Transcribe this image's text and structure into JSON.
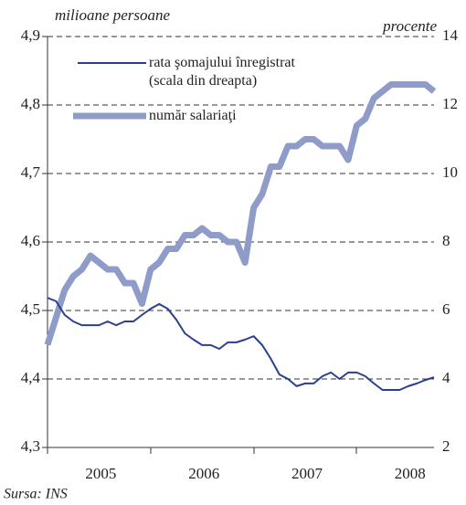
{
  "chart_data": {
    "type": "line",
    "left_axis_label": "milioane persoane",
    "right_axis_label": "procente",
    "source": "Sursa: INS",
    "categories": [
      null,
      null,
      null,
      null,
      null,
      null,
      "2005",
      null,
      null,
      null,
      null,
      null,
      null,
      null,
      null,
      null,
      null,
      null,
      "2006",
      null,
      null,
      null,
      null,
      null,
      null,
      null,
      null,
      null,
      null,
      null,
      "2007",
      null,
      null,
      null,
      null,
      null,
      null,
      null,
      null,
      null,
      null,
      null,
      "2008",
      null,
      null,
      null
    ],
    "series": [
      {
        "name": "rata şomajului înregistrat (scala din dreapta)",
        "color": "#2b3f8f",
        "axis": "y2",
        "values": [
          6.37,
          6.27,
          5.87,
          5.68,
          5.57,
          5.57,
          5.57,
          5.68,
          5.57,
          5.68,
          5.68,
          5.87,
          6.05,
          6.19,
          6.05,
          5.73,
          5.33,
          5.15,
          4.99,
          4.99,
          4.88,
          5.07,
          5.07,
          5.15,
          5.25,
          4.99,
          4.59,
          4.13,
          4.0,
          3.79,
          3.87,
          3.87,
          4.08,
          4.19,
          4.0,
          4.19,
          4.19,
          4.08,
          3.87,
          3.68,
          3.68,
          3.68,
          3.79,
          3.87,
          3.97,
          4.05
        ]
      },
      {
        "name": "număr salariaţi",
        "color": "#8f9bc8",
        "values": [
          4.45,
          4.49,
          4.53,
          4.55,
          4.56,
          4.58,
          4.57,
          4.56,
          4.56,
          4.54,
          4.54,
          4.51,
          4.56,
          4.57,
          4.59,
          4.59,
          4.61,
          4.61,
          4.62,
          4.61,
          4.61,
          4.6,
          4.6,
          4.57,
          4.65,
          4.67,
          4.71,
          4.71,
          4.74,
          4.74,
          4.75,
          4.75,
          4.74,
          4.74,
          4.74,
          4.72,
          4.77,
          4.78,
          4.81,
          4.82,
          4.83,
          4.83,
          4.83,
          4.83,
          4.83,
          4.82
        ]
      }
    ],
    "ylim": [
      4.3,
      4.9
    ],
    "yticks": [
      {
        "value": 4.3,
        "label": "4,3"
      },
      {
        "value": 4.4,
        "label": "4,4"
      },
      {
        "value": 4.5,
        "label": "4,5"
      },
      {
        "value": 4.6,
        "label": "4,6"
      },
      {
        "value": 4.7,
        "label": "4,7"
      },
      {
        "value": 4.8,
        "label": "4,8"
      },
      {
        "value": 4.9,
        "label": "4,9"
      }
    ],
    "y2lim": [
      2,
      14
    ],
    "y2ticks": [
      2,
      4,
      6,
      8,
      10,
      12,
      14
    ],
    "grid": true
  }
}
